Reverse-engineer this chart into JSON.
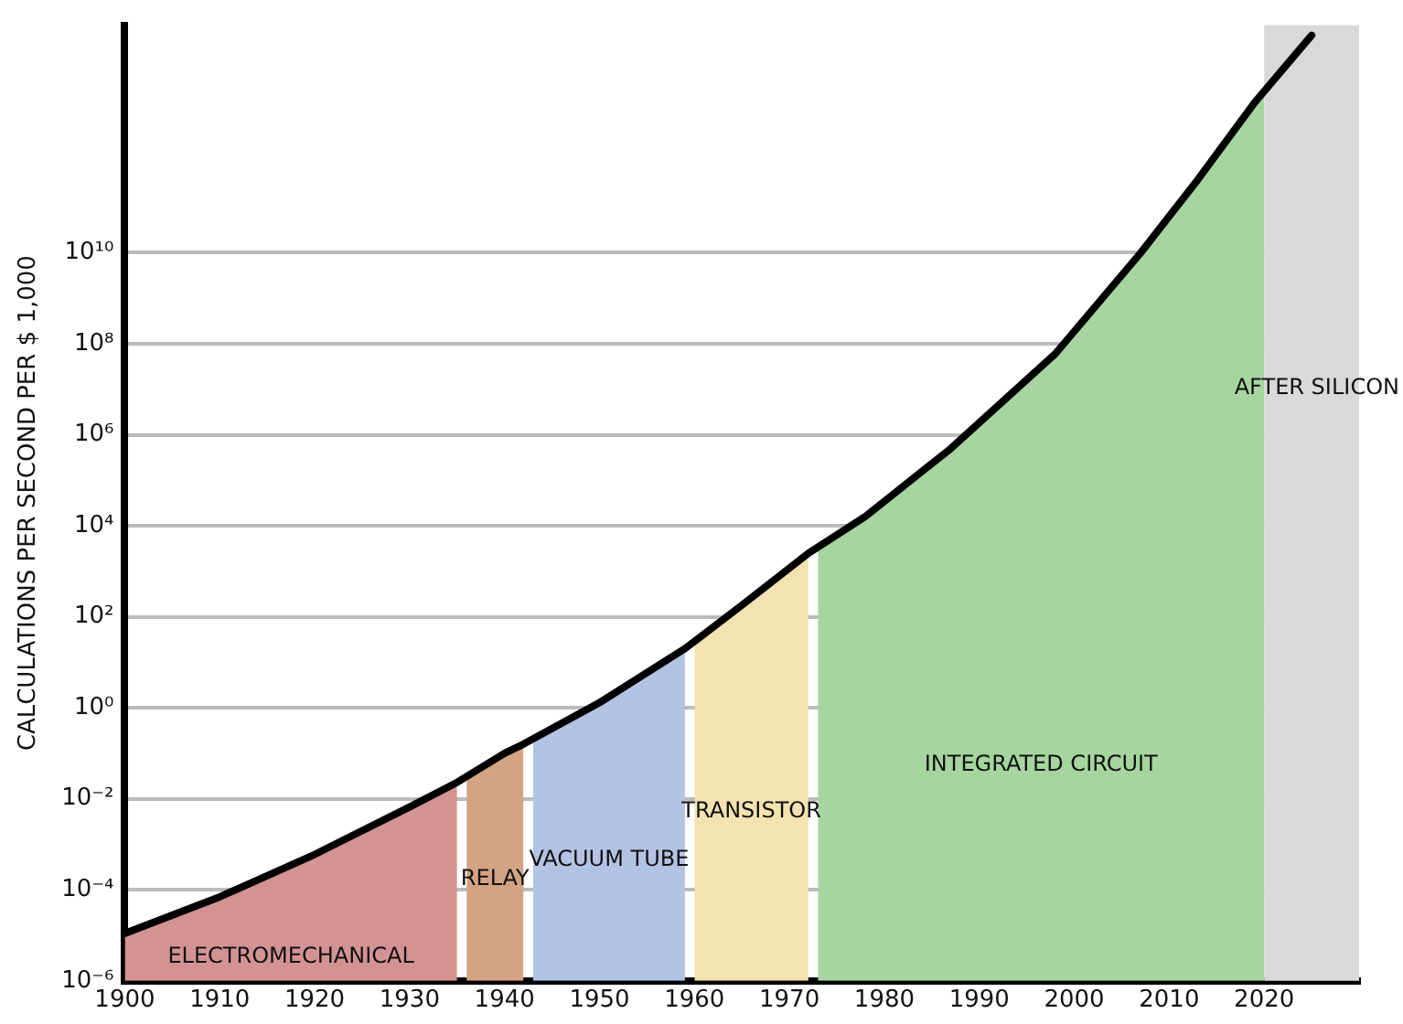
{
  "chart_data": {
    "type": "area",
    "ylabel": "CALCULATIONS PER SECOND PER $ 1,000",
    "log": "y",
    "grid": "y",
    "legend": false,
    "marker": "none",
    "xlim": [
      1900,
      2030
    ],
    "xticks": [
      1900,
      1910,
      1920,
      1930,
      1940,
      1950,
      1960,
      1970,
      1980,
      1990,
      2000,
      2010,
      2020
    ],
    "ylim": [
      1e-06,
      1000000000000000.0
    ],
    "yticks": [
      {
        "value": 1e-06,
        "label": "10⁻⁶"
      },
      {
        "value": 0.0001,
        "label": "10⁻⁴"
      },
      {
        "value": 0.01,
        "label": "10⁻²"
      },
      {
        "value": 1,
        "label": "10⁰"
      },
      {
        "value": 100,
        "label": "10²"
      },
      {
        "value": 10000,
        "label": "10⁴"
      },
      {
        "value": 1000000.0,
        "label": "10⁶"
      },
      {
        "value": 100000000.0,
        "label": "10⁸"
      },
      {
        "value": 10000000000.0,
        "label": "10¹⁰"
      }
    ],
    "series": [
      {
        "name": "ELECTROMECHANICAL",
        "color": "#d49393",
        "x": [
          1900,
          1910,
          1920,
          1930,
          1935
        ],
        "values": [
          1.1e-05,
          7e-05,
          0.0006,
          0.0066,
          0.023
        ]
      },
      {
        "name": "RELAY",
        "color": "#d4a384",
        "x": [
          1936,
          1940,
          1942
        ],
        "values": [
          0.028,
          0.1,
          0.16
        ]
      },
      {
        "name": "VACUUM TUBE",
        "color": "#b3c3e3",
        "x": [
          1943,
          1950,
          1959
        ],
        "values": [
          0.2,
          1.3,
          20
        ]
      },
      {
        "name": "TRANSISTOR",
        "color": "#f4e3b0",
        "x": [
          1960,
          1965,
          1972
        ],
        "values": [
          28,
          180,
          2500
        ]
      },
      {
        "name": "INTEGRATED CIRCUIT",
        "color": "#a6d5a0",
        "x": [
          1973,
          1978,
          1987,
          1998,
          2007,
          2013,
          2019,
          2020
        ],
        "values": [
          3200,
          16000,
          500000,
          60000000.0,
          10000000000.0,
          400000000000.0,
          20000000000000.0,
          35000000000000.0
        ]
      },
      {
        "type": "line",
        "color": "#000000",
        "x": [
          1900,
          1910,
          1920,
          1930,
          1935,
          1940,
          1942,
          1950,
          1959,
          1965,
          1972,
          1978,
          1987,
          1998,
          2007,
          2013,
          2019,
          2025
        ],
        "values": [
          1.1e-05,
          7e-05,
          0.0006,
          0.0066,
          0.023,
          0.1,
          0.16,
          1.3,
          20,
          180,
          2500,
          16000,
          500000,
          60000000.0,
          10000000000.0,
          400000000000.0,
          20000000000000.0,
          600000000000000.0
        ]
      }
    ],
    "bands": [
      {
        "axis": "x",
        "from": 2020,
        "to": 2030,
        "label": "AFTER SILICON",
        "color": "#d9d9d9"
      }
    ]
  }
}
